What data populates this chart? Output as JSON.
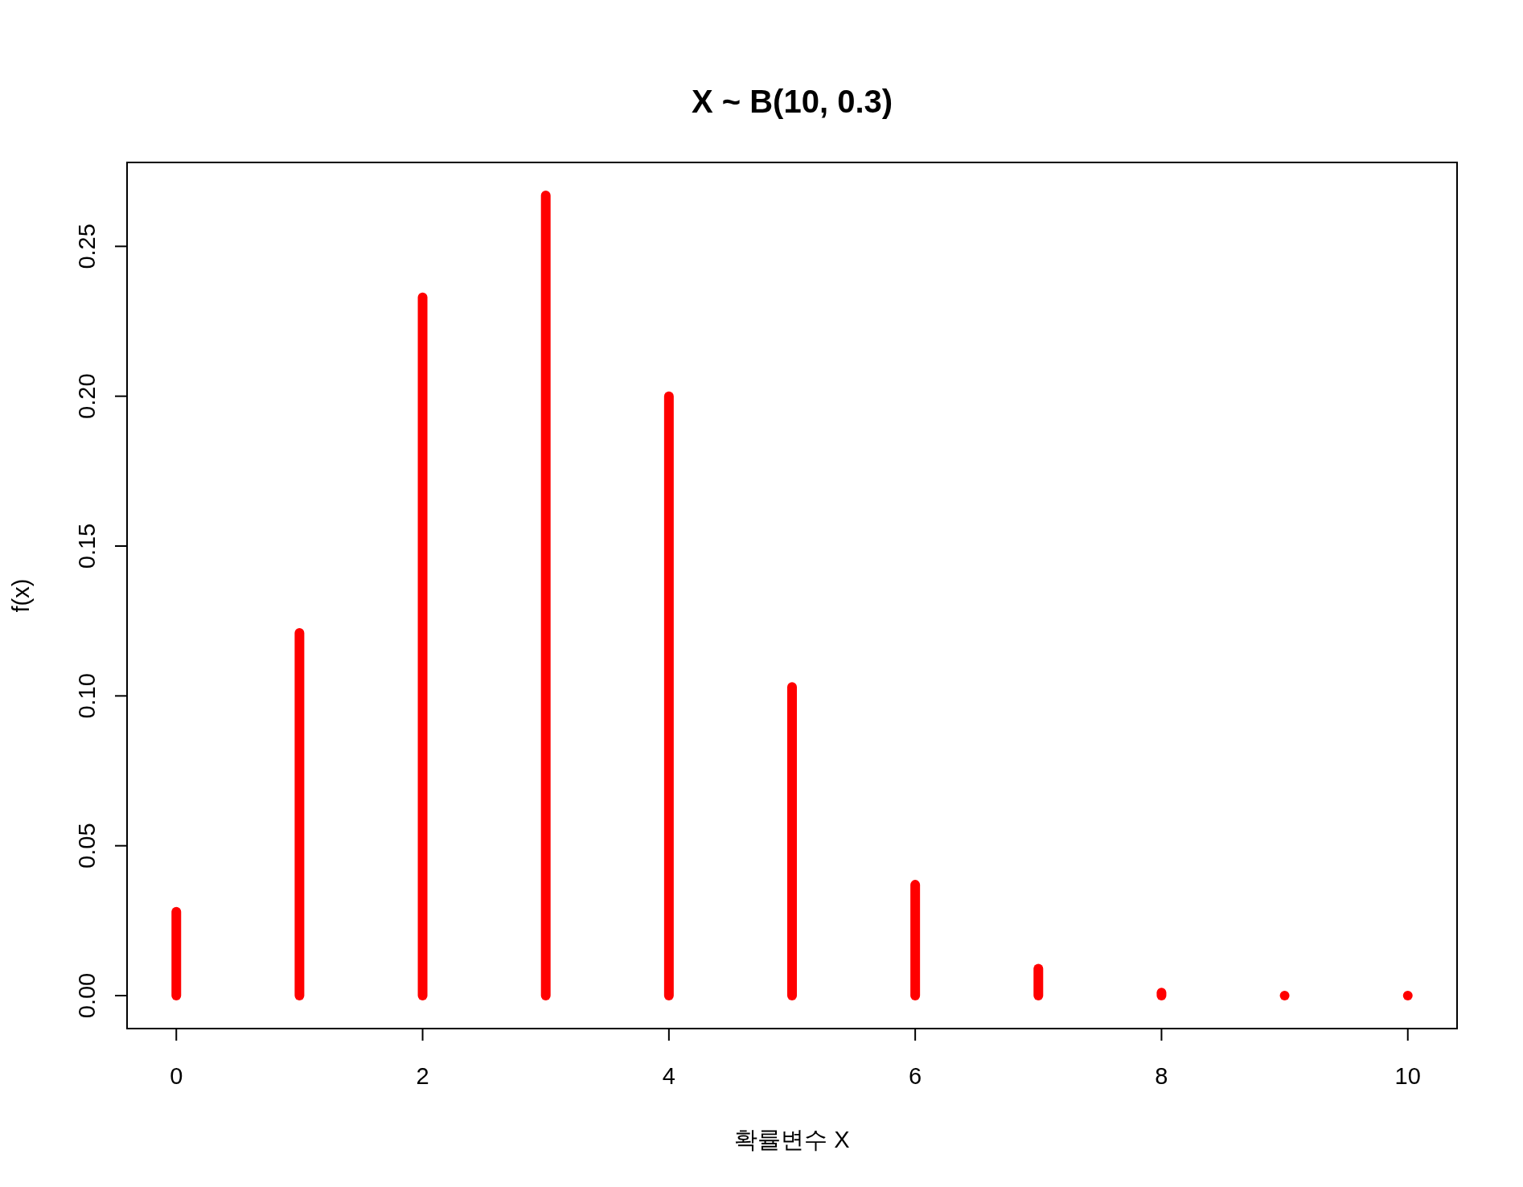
{
  "chart_data": {
    "type": "bar",
    "title": "X ~ B(10, 0.3)",
    "xlabel": "확률변수 X",
    "ylabel": "f(x)",
    "x": [
      0,
      1,
      2,
      3,
      4,
      5,
      6,
      7,
      8,
      9,
      10
    ],
    "values": [
      0.028,
      0.121,
      0.233,
      0.267,
      0.2,
      0.103,
      0.037,
      0.009,
      0.001,
      0.0,
      0.0
    ],
    "color": "#ff0000",
    "xlim": [
      -0.4,
      10.4
    ],
    "ylim": [
      -0.011,
      0.278
    ],
    "xticks": [
      0,
      2,
      4,
      6,
      8,
      10
    ],
    "yticks": [
      {
        "value": 0,
        "label": "0.00"
      },
      {
        "value": 0.05,
        "label": "0.05"
      },
      {
        "value": 0.1,
        "label": "0.10"
      },
      {
        "value": 0.15,
        "label": "0.15"
      },
      {
        "value": 0.2,
        "label": "0.20"
      },
      {
        "value": 0.25,
        "label": "0.25"
      }
    ]
  }
}
